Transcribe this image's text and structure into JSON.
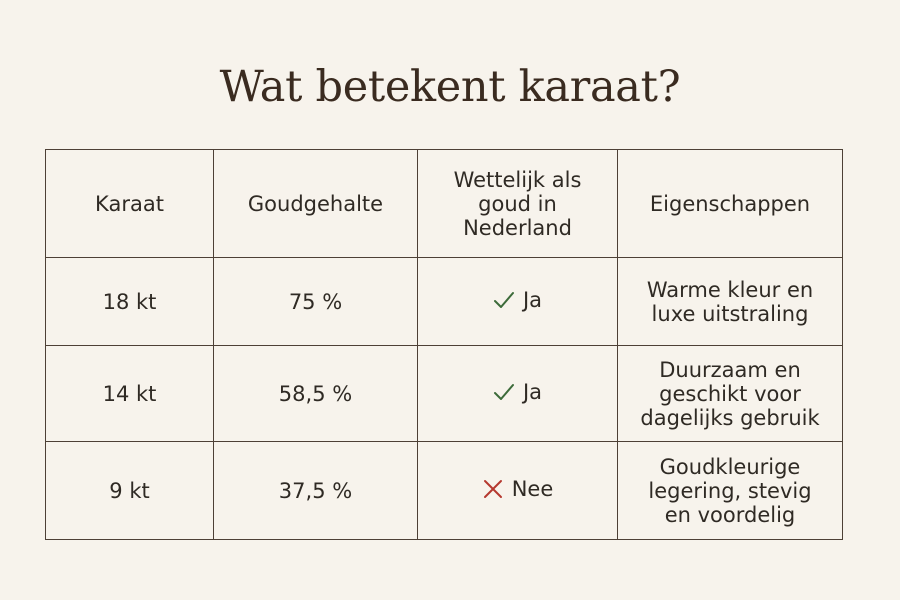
{
  "title": "Wat betekent karaat?",
  "table": {
    "headers": [
      "Karaat",
      "Goudgehalte",
      "Wettelijk als goud in Nederland",
      "Eigenschappen"
    ],
    "rows": [
      {
        "karaat": "18 kt",
        "goudgehalte": "75 %",
        "wettelijk": "Ja",
        "wettelijk_icon": "check-icon",
        "eigenschappen": "Warme kleur en luxe uitstraling"
      },
      {
        "karaat": "14 kt",
        "goudgehalte": "58,5 %",
        "wettelijk": "Ja",
        "wettelijk_icon": "check-icon",
        "eigenschappen": "Duurzaam en geschikt voor dagelijks gebruik"
      },
      {
        "karaat": "9 kt",
        "goudgehalte": "37,5 %",
        "wettelijk": "Nee",
        "wettelijk_icon": "cross-icon",
        "eigenschappen": "Goudkleurige legering, stevig en voordelig"
      }
    ]
  },
  "colors": {
    "background": "#f7f3ec",
    "check": "#3d6b3a",
    "cross": "#b5382f",
    "border": "#4d4036",
    "title": "#3a2b20"
  }
}
